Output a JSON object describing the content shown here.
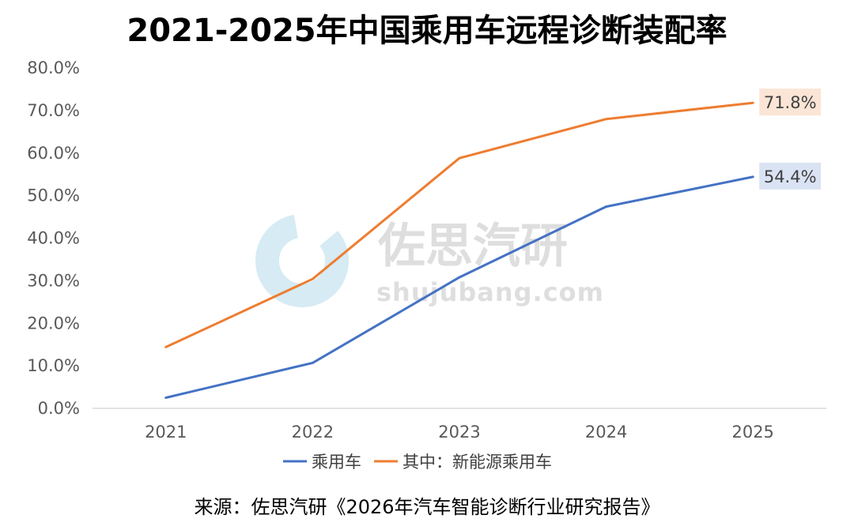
{
  "title": "2021-2025年中国乘用车远程诊断装配率",
  "source": "来源：佐思汽研《2026年汽车智能诊断行业研究报告》",
  "watermark": {
    "name": "佐思汽研",
    "url": "shujubang.com"
  },
  "chart_data": {
    "type": "line",
    "title": "2021-2025年中国乘用车远程诊断装配率",
    "xlabel": "",
    "ylabel": "",
    "categories": [
      "2021",
      "2022",
      "2023",
      "2024",
      "2025"
    ],
    "ylim": [
      0,
      80
    ],
    "yticks": [
      0,
      10,
      20,
      30,
      40,
      50,
      60,
      70,
      80
    ],
    "ytick_labels": [
      "0.0%",
      "10.0%",
      "20.0%",
      "30.0%",
      "40.0%",
      "50.0%",
      "60.0%",
      "70.0%",
      "80.0%"
    ],
    "grid": false,
    "legend_position": "bottom",
    "series": [
      {
        "name": "乘用车",
        "color": "#4472C4",
        "values": [
          2.5,
          10.7,
          30.8,
          47.4,
          54.4
        ],
        "end_label": "54.4%",
        "label_bg": "#DAE3F3"
      },
      {
        "name": "其中：新能源乘用车",
        "color": "#ED7D31",
        "values": [
          14.4,
          30.4,
          58.8,
          68.0,
          71.8
        ],
        "end_label": "71.8%",
        "label_bg": "#FBE5D6"
      }
    ]
  }
}
